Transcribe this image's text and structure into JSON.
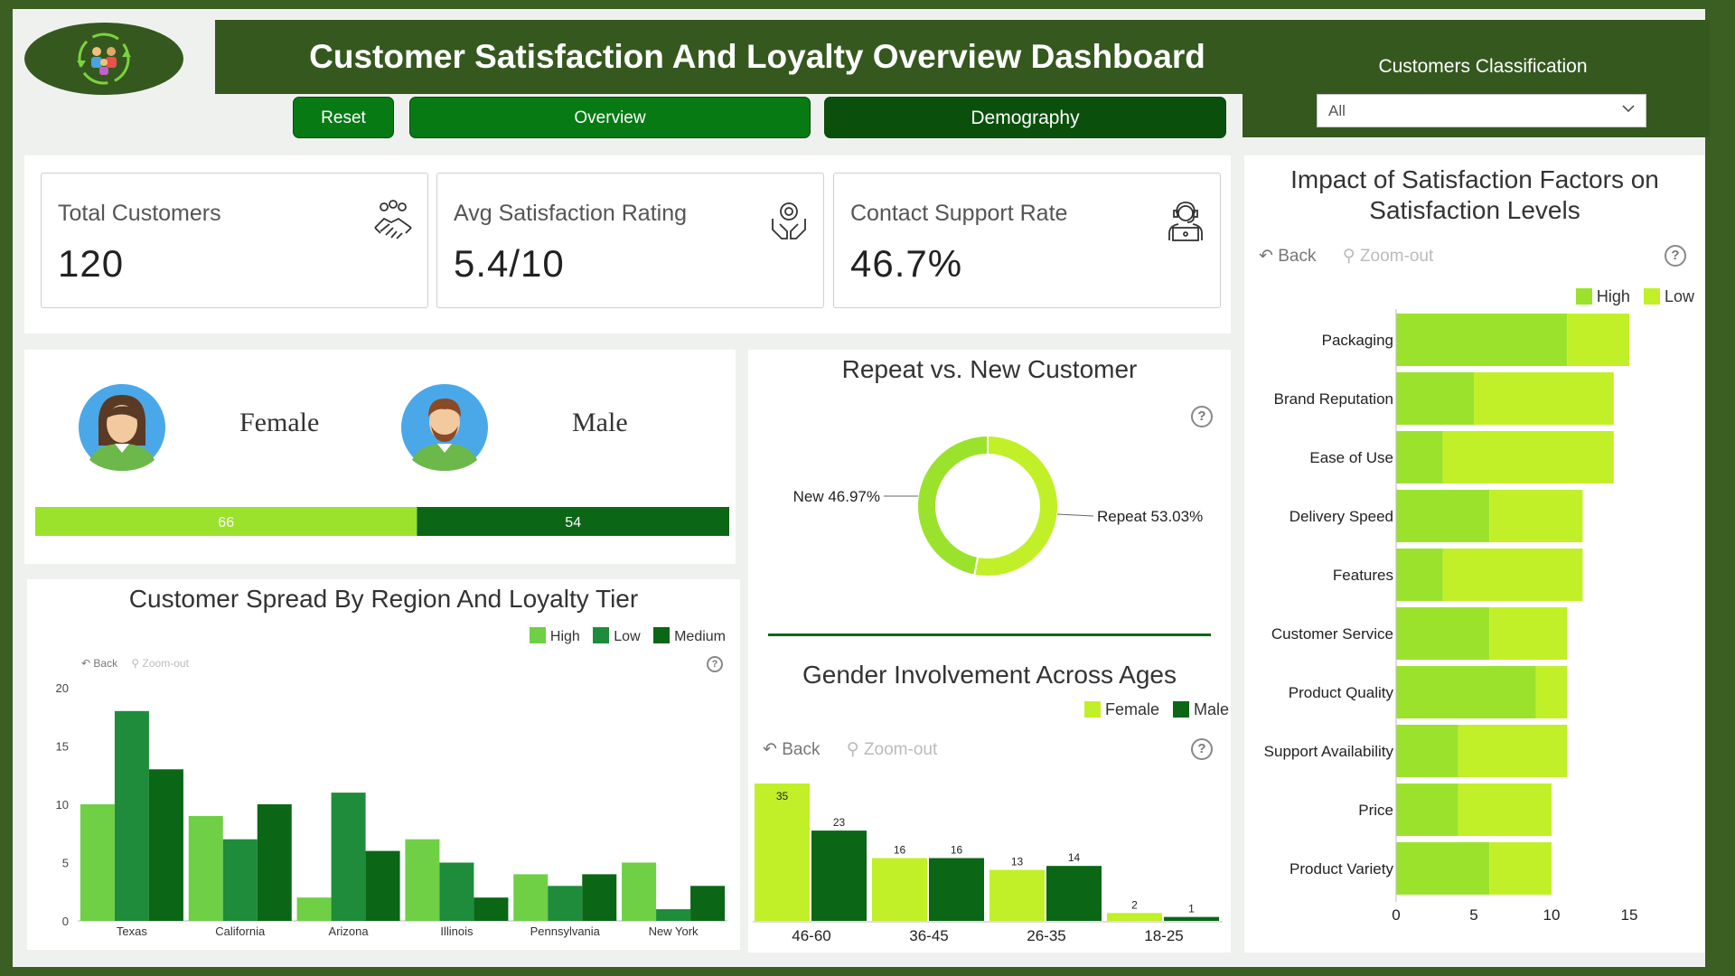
{
  "header": {
    "title": "Customer Satisfaction And Loyalty Overview Dashboard",
    "logo_icon": "customers-cycle-icon"
  },
  "nav": {
    "reset": "Reset",
    "overview": "Overview",
    "demography": "Demography"
  },
  "classification": {
    "label": "Customers Classification",
    "value": "All"
  },
  "kpis": {
    "total_customers": {
      "label": "Total Customers",
      "value": "120",
      "icon": "handshake-group-icon"
    },
    "avg_satisfaction": {
      "label": "Avg Satisfaction Rating",
      "value": "5.4/10",
      "icon": "hands-award-icon"
    },
    "contact_support": {
      "label": "Contact Support Rate",
      "value": "46.7%",
      "icon": "support-agent-icon"
    }
  },
  "gender": {
    "female_label": "Female",
    "male_label": "Male",
    "female_count": 66,
    "male_count": 54,
    "female_value": "66",
    "male_value": "54",
    "female_color": "#9be22d",
    "male_color": "#0b6616"
  },
  "toolbar": {
    "back": "Back",
    "zoom_out": "Zoom-out",
    "help": "?"
  },
  "region_chart": {
    "title": "Customer Spread By Region And Loyalty Tier",
    "legend": {
      "high": "High",
      "low": "Low",
      "medium": "Medium"
    },
    "colors": {
      "high": "#6fcf45",
      "low": "#1e8c3a",
      "medium": "#0b6616"
    },
    "chart_data": {
      "type": "bar",
      "categories": [
        "Texas",
        "California",
        "Arizona",
        "Illinois",
        "Pennsylvania",
        "New York"
      ],
      "series": [
        {
          "name": "High",
          "values": [
            10,
            9,
            2,
            7,
            4,
            5
          ]
        },
        {
          "name": "Low",
          "values": [
            18,
            7,
            11,
            5,
            3,
            1
          ]
        },
        {
          "name": "Medium",
          "values": [
            13,
            10,
            6,
            2,
            4,
            3
          ]
        }
      ],
      "ylim": [
        0,
        20
      ],
      "yticks": [
        "0",
        "5",
        "10",
        "15",
        "20"
      ]
    }
  },
  "repeat_chart": {
    "title": "Repeat vs. New Customer",
    "colors": {
      "new": "#9be22d",
      "repeat": "#c1f028"
    },
    "chart_data": {
      "type": "pie",
      "labels": [
        "New",
        "Repeat"
      ],
      "values": [
        46.97,
        53.03
      ],
      "data_labels": [
        "New 46.97%",
        "Repeat 53.03%"
      ]
    }
  },
  "age_chart": {
    "title": "Gender Involvement Across Ages",
    "legend": {
      "female": "Female",
      "male": "Male"
    },
    "colors": {
      "female": "#c1f028",
      "male": "#0b6616"
    },
    "chart_data": {
      "type": "bar",
      "categories": [
        "46-60",
        "36-45",
        "26-35",
        "18-25"
      ],
      "series": [
        {
          "name": "Female",
          "values": [
            35,
            16,
            13,
            2
          ]
        },
        {
          "name": "Male",
          "values": [
            23,
            16,
            14,
            1
          ]
        }
      ],
      "ylim": [
        0,
        35
      ]
    }
  },
  "factors_chart": {
    "title_line1": "Impact of Satisfaction Factors on",
    "title_line2": "Satisfaction Levels",
    "legend": {
      "high": "High",
      "low": "Low"
    },
    "colors": {
      "high": "#9be22d",
      "low": "#c1f028"
    },
    "chart_data": {
      "type": "bar",
      "orientation": "horizontal",
      "stacked": true,
      "categories": [
        "Packaging",
        "Brand Reputation",
        "Ease of Use",
        "Delivery Speed",
        "Features",
        "Customer Service",
        "Product Quality",
        "Support Availability",
        "Price",
        "Product Variety"
      ],
      "series": [
        {
          "name": "High",
          "values": [
            11,
            5,
            3,
            6,
            3,
            6,
            9,
            4,
            4,
            6
          ]
        },
        {
          "name": "Low",
          "values": [
            4,
            9,
            11,
            6,
            9,
            5,
            2,
            7,
            6,
            4
          ]
        }
      ],
      "xlim": [
        0,
        15
      ],
      "xticks": [
        "0",
        "5",
        "10",
        "15"
      ]
    }
  }
}
